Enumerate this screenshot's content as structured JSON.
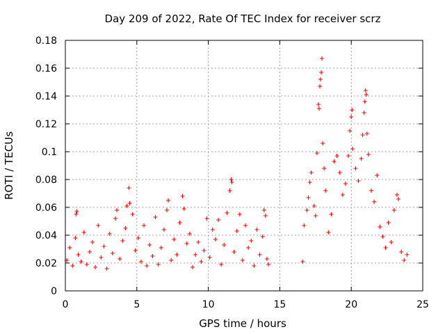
{
  "chart_data": {
    "type": "scatter",
    "title": "Day 209 of 2022, Rate Of TEC Index for receiver scrz",
    "xlabel": "GPS time / hours",
    "ylabel": "ROTI / TECUs",
    "xlim": [
      0,
      25
    ],
    "ylim": [
      0,
      0.18
    ],
    "x_ticks": [
      0,
      5,
      10,
      15,
      20,
      25
    ],
    "x_tick_labels": [
      "0",
      "5",
      "10",
      "15",
      "20",
      "25"
    ],
    "y_ticks": [
      0,
      0.02,
      0.04,
      0.06,
      0.08,
      0.1,
      0.12,
      0.14,
      0.16,
      0.18
    ],
    "y_tick_labels": [
      "0",
      "0.02",
      "0.04",
      "0.06",
      "0.08",
      "0.1",
      "0.12",
      "0.14",
      "0.16",
      "0.18"
    ],
    "grid": true,
    "marker": "+",
    "color": "#ff0000",
    "series": [
      {
        "name": "ROTI",
        "data_gap_hours": [
          14.3,
          16.5
        ],
        "points": [
          [
            0.1,
            0.022
          ],
          [
            0.3,
            0.031
          ],
          [
            0.5,
            0.018
          ],
          [
            0.7,
            0.038
          ],
          [
            0.75,
            0.055
          ],
          [
            0.8,
            0.057
          ],
          [
            0.9,
            0.026
          ],
          [
            1.1,
            0.021
          ],
          [
            1.3,
            0.042
          ],
          [
            1.5,
            0.019
          ],
          [
            1.7,
            0.028
          ],
          [
            1.9,
            0.035
          ],
          [
            2.1,
            0.017
          ],
          [
            2.3,
            0.047
          ],
          [
            2.5,
            0.024
          ],
          [
            2.7,
            0.032
          ],
          [
            2.9,
            0.016
          ],
          [
            3.1,
            0.041
          ],
          [
            3.3,
            0.027
          ],
          [
            3.5,
            0.052
          ],
          [
            3.6,
            0.058
          ],
          [
            3.8,
            0.023
          ],
          [
            4.0,
            0.036
          ],
          [
            4.2,
            0.045
          ],
          [
            4.3,
            0.061
          ],
          [
            4.45,
            0.074
          ],
          [
            4.5,
            0.063
          ],
          [
            4.7,
            0.055
          ],
          [
            4.9,
            0.029
          ],
          [
            5.1,
            0.038
          ],
          [
            5.3,
            0.021
          ],
          [
            5.5,
            0.047
          ],
          [
            5.7,
            0.018
          ],
          [
            5.9,
            0.033
          ],
          [
            6.1,
            0.025
          ],
          [
            6.3,
            0.053
          ],
          [
            6.5,
            0.019
          ],
          [
            6.7,
            0.031
          ],
          [
            6.9,
            0.044
          ],
          [
            7.1,
            0.058
          ],
          [
            7.2,
            0.065
          ],
          [
            7.4,
            0.022
          ],
          [
            7.6,
            0.037
          ],
          [
            7.8,
            0.026
          ],
          [
            8.0,
            0.049
          ],
          [
            8.2,
            0.068
          ],
          [
            8.3,
            0.059
          ],
          [
            8.5,
            0.034
          ],
          [
            8.7,
            0.041
          ],
          [
            8.9,
            0.017
          ],
          [
            9.1,
            0.026
          ],
          [
            9.3,
            0.035
          ],
          [
            9.5,
            0.021
          ],
          [
            9.7,
            0.029
          ],
          [
            9.9,
            0.052
          ],
          [
            10.1,
            0.024
          ],
          [
            10.3,
            0.044
          ],
          [
            10.5,
            0.037
          ],
          [
            10.7,
            0.051
          ],
          [
            10.9,
            0.019
          ],
          [
            11.1,
            0.033
          ],
          [
            11.3,
            0.056
          ],
          [
            11.5,
            0.072
          ],
          [
            11.6,
            0.08
          ],
          [
            11.65,
            0.078
          ],
          [
            11.8,
            0.028
          ],
          [
            12.0,
            0.043
          ],
          [
            12.2,
            0.055
          ],
          [
            12.4,
            0.022
          ],
          [
            12.6,
            0.047
          ],
          [
            12.8,
            0.031
          ],
          [
            13.0,
            0.036
          ],
          [
            13.2,
            0.018
          ],
          [
            13.4,
            0.044
          ],
          [
            13.6,
            0.026
          ],
          [
            13.8,
            0.039
          ],
          [
            13.9,
            0.058
          ],
          [
            14.0,
            0.054
          ],
          [
            14.1,
            0.023
          ],
          [
            14.2,
            0.019
          ],
          [
            16.6,
            0.021
          ],
          [
            16.7,
            0.047
          ],
          [
            16.9,
            0.058
          ],
          [
            17.0,
            0.067
          ],
          [
            17.1,
            0.078
          ],
          [
            17.2,
            0.085
          ],
          [
            17.4,
            0.061
          ],
          [
            17.5,
            0.054
          ],
          [
            17.6,
            0.099
          ],
          [
            17.7,
            0.134
          ],
          [
            17.75,
            0.131
          ],
          [
            17.8,
            0.147
          ],
          [
            17.85,
            0.152
          ],
          [
            17.9,
            0.157
          ],
          [
            17.95,
            0.167
          ],
          [
            18.0,
            0.106
          ],
          [
            18.1,
            0.088
          ],
          [
            18.2,
            0.072
          ],
          [
            18.4,
            0.042
          ],
          [
            18.6,
            0.055
          ],
          [
            18.8,
            0.093
          ],
          [
            19.0,
            0.097
          ],
          [
            19.2,
            0.085
          ],
          [
            19.4,
            0.069
          ],
          [
            19.6,
            0.077
          ],
          [
            19.8,
            0.097
          ],
          [
            19.9,
            0.115
          ],
          [
            20.0,
            0.125
          ],
          [
            20.05,
            0.13
          ],
          [
            20.1,
            0.102
          ],
          [
            20.3,
            0.088
          ],
          [
            20.5,
            0.079
          ],
          [
            20.7,
            0.095
          ],
          [
            20.8,
            0.112
          ],
          [
            20.9,
            0.128
          ],
          [
            20.95,
            0.136
          ],
          [
            21.0,
            0.144
          ],
          [
            21.05,
            0.141
          ],
          [
            21.1,
            0.113
          ],
          [
            21.2,
            0.098
          ],
          [
            21.4,
            0.072
          ],
          [
            21.6,
            0.064
          ],
          [
            21.8,
            0.083
          ],
          [
            22.0,
            0.046
          ],
          [
            22.2,
            0.039
          ],
          [
            22.4,
            0.031
          ],
          [
            22.6,
            0.049
          ],
          [
            22.8,
            0.035
          ],
          [
            23.0,
            0.058
          ],
          [
            23.2,
            0.069
          ],
          [
            23.3,
            0.066
          ],
          [
            23.5,
            0.028
          ],
          [
            23.7,
            0.022
          ],
          [
            23.9,
            0.026
          ]
        ]
      }
    ]
  }
}
